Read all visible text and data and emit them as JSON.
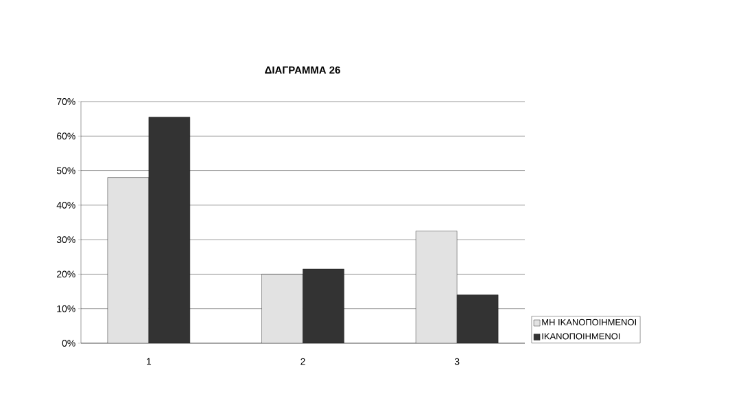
{
  "chart_data": {
    "type": "bar",
    "title": "ΔΙΑΓΡΑΜΜΑ 26",
    "categories": [
      "1",
      "2",
      "3"
    ],
    "series": [
      {
        "name": "ΜΗ ΙΚΑΝΟΠΟΙΗΜΕΝΟΙ",
        "color": "#e2e2e2",
        "values": [
          48,
          20,
          32.5
        ]
      },
      {
        "name": "ΙΚΑΝΟΠΟΙΗΜΕΝΟΙ",
        "color": "#333333",
        "values": [
          65.5,
          21.5,
          14
        ]
      }
    ],
    "ylim": [
      0,
      70
    ],
    "yticks": [
      {
        "value": 0,
        "label": "0%"
      },
      {
        "value": 10,
        "label": "10%"
      },
      {
        "value": 20,
        "label": "20%"
      },
      {
        "value": 30,
        "label": "30%"
      },
      {
        "value": 40,
        "label": "40%"
      },
      {
        "value": 50,
        "label": "50%"
      },
      {
        "value": 60,
        "label": "60%"
      },
      {
        "value": 70,
        "label": "70%"
      }
    ],
    "grid": "y",
    "legend": "bottom right"
  }
}
